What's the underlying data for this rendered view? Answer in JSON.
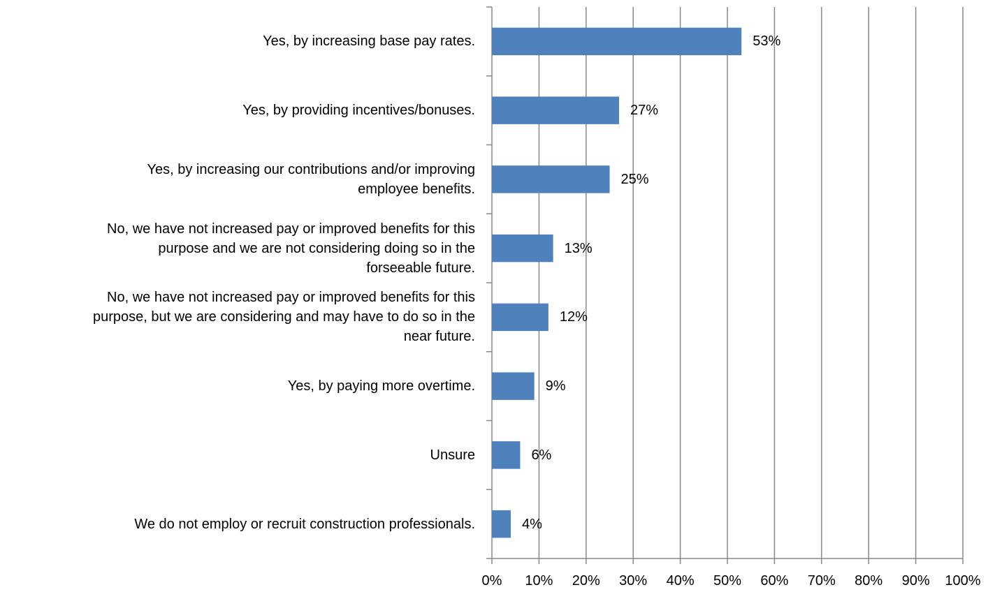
{
  "chart_data": {
    "type": "bar",
    "orientation": "horizontal",
    "categories": [
      [
        "Yes, by increasing base pay rates."
      ],
      [
        "Yes, by providing incentives/bonuses."
      ],
      [
        "Yes, by increasing our contributions and/or improving",
        "employee benefits."
      ],
      [
        "No, we have not increased pay or improved benefits for this",
        "purpose and we are not considering doing so in the",
        "forseeable future."
      ],
      [
        "No, we have not increased pay or improved benefits for this",
        "purpose, but we are considering and may have to do so in the",
        "near future."
      ],
      [
        "Yes, by paying more overtime."
      ],
      [
        "Unsure"
      ],
      [
        "We do not employ or recruit construction professionals."
      ]
    ],
    "values": [
      53,
      27,
      25,
      13,
      12,
      9,
      6,
      4
    ],
    "data_labels": [
      "53%",
      "27%",
      "25%",
      "13%",
      "12%",
      "9%",
      "6%",
      "4%"
    ],
    "xlim": [
      0,
      100
    ],
    "xticks": [
      0,
      10,
      20,
      30,
      40,
      50,
      60,
      70,
      80,
      90,
      100
    ],
    "xtick_labels": [
      "0%",
      "10%",
      "20%",
      "30%",
      "40%",
      "50%",
      "60%",
      "70%",
      "80%",
      "90%",
      "100%"
    ],
    "title": "",
    "xlabel": "",
    "ylabel": "",
    "grid": true,
    "legend": "none",
    "bar_color": "#4F81BD",
    "grid_color": "#888888"
  }
}
